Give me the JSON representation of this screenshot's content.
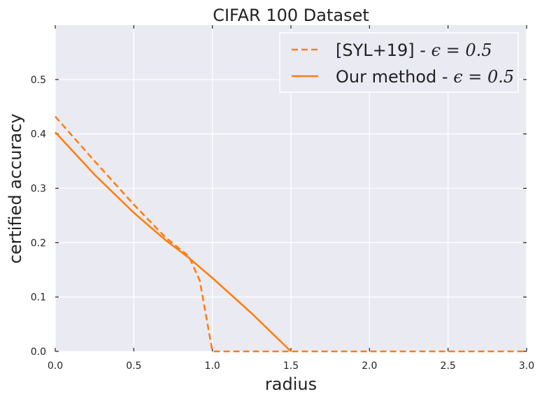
{
  "chart_data": {
    "type": "line",
    "title": "CIFAR 100 Dataset",
    "xlabel": "radius",
    "ylabel": "certified accuracy",
    "xlim": [
      0,
      3
    ],
    "ylim": [
      0,
      0.6
    ],
    "xticks": [
      0.0,
      0.5,
      1.0,
      1.5,
      2.0,
      2.5,
      3.0
    ],
    "xtick_labels": [
      "0.0",
      "0.5",
      "1.0",
      "1.5",
      "2.0",
      "2.5",
      "3.0"
    ],
    "yticks": [
      0.0,
      0.1,
      0.2,
      0.3,
      0.4,
      0.5
    ],
    "ytick_labels": [
      "0.0",
      "0.1",
      "0.2",
      "0.3",
      "0.4",
      "0.5"
    ],
    "grid": true,
    "legend_position": "top-right",
    "colors": {
      "series": "#ff7f0e",
      "plot_background": "#eaeaf2",
      "grid": "#ffffff"
    },
    "series": [
      {
        "name": "[SYL+19] - ϵ = 0.5",
        "style": "dashed",
        "x": [
          0.0,
          0.25,
          0.5,
          0.7,
          0.85,
          0.92,
          1.0,
          1.5,
          2.0,
          2.5,
          3.0
        ],
        "y": [
          0.432,
          0.35,
          0.27,
          0.21,
          0.175,
          0.13,
          0.0,
          0.0,
          0.0,
          0.0,
          0.0
        ]
      },
      {
        "name": "Our method - ϵ = 0.5",
        "style": "solid",
        "x": [
          0.0,
          0.25,
          0.5,
          0.7,
          0.85,
          1.0,
          1.25,
          1.5
        ],
        "y": [
          0.403,
          0.325,
          0.255,
          0.205,
          0.172,
          0.135,
          0.07,
          0.0
        ]
      }
    ]
  }
}
